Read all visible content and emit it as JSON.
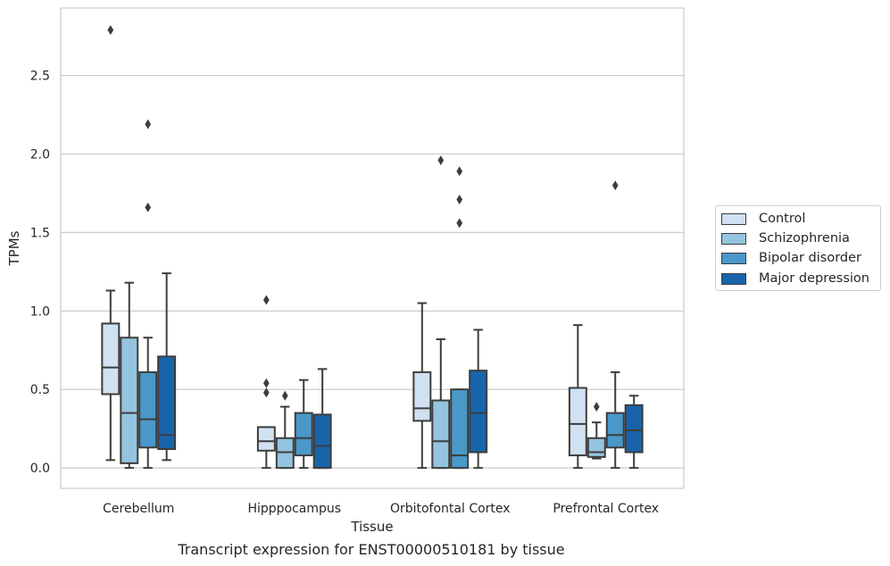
{
  "chart_data": {
    "type": "box",
    "title": "",
    "caption": "Transcript expression for ENST00000510181 by tissue",
    "xlabel": "Tissue",
    "ylabel": "TPMs",
    "ylim": [
      -0.13,
      2.93
    ],
    "yticks": [
      0.0,
      0.5,
      1.0,
      1.5,
      2.0,
      2.5
    ],
    "ytick_labels": [
      "0.0",
      "0.5",
      "1.0",
      "1.5",
      "2.0",
      "2.5"
    ],
    "grid": "horizontal",
    "legend_position": "right",
    "categories": [
      "Cerebellum",
      "Hipppocampus",
      "Orbitofontal Cortex",
      "Prefrontal Cortex"
    ],
    "series": [
      {
        "name": "Control",
        "color": "#d0e1f2",
        "boxes": [
          {
            "whislo": 0.05,
            "q1": 0.47,
            "med": 0.64,
            "q3": 0.92,
            "whishi": 1.13,
            "fliers": [
              2.79
            ]
          },
          {
            "whislo": 0.0,
            "q1": 0.11,
            "med": 0.17,
            "q3": 0.26,
            "whishi": 0.26,
            "fliers": [
              1.07,
              0.54,
              0.48
            ]
          },
          {
            "whislo": 0.0,
            "q1": 0.3,
            "med": 0.38,
            "q3": 0.61,
            "whishi": 1.05,
            "fliers": []
          },
          {
            "whislo": 0.0,
            "q1": 0.08,
            "med": 0.28,
            "q3": 0.51,
            "whishi": 0.91,
            "fliers": []
          }
        ]
      },
      {
        "name": "Schizophrenia",
        "color": "#94c4df",
        "boxes": [
          {
            "whislo": 0.0,
            "q1": 0.03,
            "med": 0.35,
            "q3": 0.83,
            "whishi": 1.18,
            "fliers": []
          },
          {
            "whislo": 0.0,
            "q1": 0.0,
            "med": 0.1,
            "q3": 0.19,
            "whishi": 0.39,
            "fliers": [
              0.46
            ]
          },
          {
            "whislo": 0.0,
            "q1": 0.0,
            "med": 0.17,
            "q3": 0.43,
            "whishi": 0.82,
            "fliers": [
              1.96
            ]
          },
          {
            "whislo": 0.06,
            "q1": 0.07,
            "med": 0.1,
            "q3": 0.19,
            "whishi": 0.29,
            "fliers": [
              0.39
            ]
          }
        ]
      },
      {
        "name": "Bipolar disorder",
        "color": "#4a98c9",
        "boxes": [
          {
            "whislo": 0.0,
            "q1": 0.13,
            "med": 0.31,
            "q3": 0.61,
            "whishi": 0.83,
            "fliers": [
              2.19,
              1.66
            ]
          },
          {
            "whislo": 0.0,
            "q1": 0.08,
            "med": 0.19,
            "q3": 0.35,
            "whishi": 0.56,
            "fliers": []
          },
          {
            "whislo": 0.0,
            "q1": 0.0,
            "med": 0.08,
            "q3": 0.5,
            "whishi": 0.5,
            "fliers": [
              1.89,
              1.71,
              1.56
            ]
          },
          {
            "whislo": 0.0,
            "q1": 0.13,
            "med": 0.21,
            "q3": 0.35,
            "whishi": 0.61,
            "fliers": [
              1.8
            ]
          }
        ]
      },
      {
        "name": "Major depression",
        "color": "#1764ab",
        "boxes": [
          {
            "whislo": 0.05,
            "q1": 0.12,
            "med": 0.21,
            "q3": 0.71,
            "whishi": 1.24,
            "fliers": []
          },
          {
            "whislo": 0.0,
            "q1": 0.0,
            "med": 0.14,
            "q3": 0.34,
            "whishi": 0.63,
            "fliers": []
          },
          {
            "whislo": 0.0,
            "q1": 0.1,
            "med": 0.35,
            "q3": 0.62,
            "whishi": 0.88,
            "fliers": []
          },
          {
            "whislo": 0.0,
            "q1": 0.1,
            "med": 0.24,
            "q3": 0.4,
            "whishi": 0.46,
            "fliers": []
          }
        ]
      }
    ]
  }
}
